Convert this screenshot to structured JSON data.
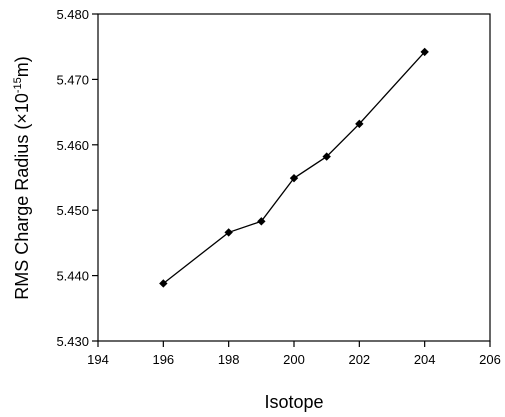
{
  "chart_data": {
    "type": "line",
    "title": "",
    "xlabel": "Isotope",
    "ylabel": "RMS Charge Radius (×10",
    "ylabel_exp": "-15",
    "ylabel_unit": "m)",
    "xlim": [
      194,
      206
    ],
    "ylim": [
      5.43,
      5.48
    ],
    "x_ticks": [
      194,
      196,
      198,
      200,
      202,
      204,
      206
    ],
    "y_ticks": [
      5.43,
      5.44,
      5.45,
      5.46,
      5.47,
      5.48
    ],
    "x_tick_labels": [
      "194",
      "196",
      "198",
      "200",
      "202",
      "204",
      "206"
    ],
    "y_tick_labels": [
      "5.430",
      "5.440",
      "5.450",
      "5.460",
      "5.470",
      "5.480"
    ],
    "grid": false,
    "legend": "none",
    "series": [
      {
        "marker": "diamond",
        "color": "#000000",
        "x": [
          196,
          198,
          199,
          200,
          201,
          202,
          204
        ],
        "y": [
          5.4388,
          5.4466,
          5.4483,
          5.4549,
          5.4582,
          5.4632,
          5.4742
        ]
      }
    ]
  }
}
